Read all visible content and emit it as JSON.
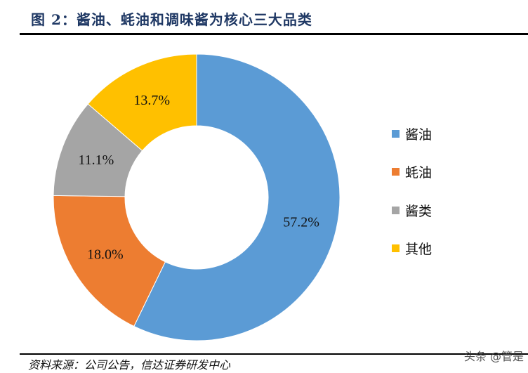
{
  "header": {
    "title": "图 2：酱油、蚝油和调味酱为核心三大品类"
  },
  "footer": {
    "source": "资料来源：公司公告，信达证券研发中心",
    "watermark": "头条 @管是"
  },
  "chart_data": {
    "type": "pie",
    "variant": "donut",
    "title": "图 2：酱油、蚝油和调味酱为核心三大品类",
    "categories": [
      "酱油",
      "蚝油",
      "酱类",
      "其他"
    ],
    "values": [
      57.2,
      18.0,
      11.1,
      13.7
    ],
    "labels": [
      "57.2%",
      "18.0%",
      "11.1%",
      "13.7%"
    ],
    "colors": [
      "#5b9bd5",
      "#ed7d31",
      "#a5a5a5",
      "#ffc000"
    ],
    "start_angle_deg": 0,
    "direction": "clockwise",
    "legend_position": "right"
  },
  "legend": {
    "items": [
      {
        "label": "酱油",
        "color": "#5b9bd5"
      },
      {
        "label": "蚝油",
        "color": "#ed7d31"
      },
      {
        "label": "酱类",
        "color": "#a5a5a5"
      },
      {
        "label": "其他",
        "color": "#ffc000"
      }
    ]
  }
}
